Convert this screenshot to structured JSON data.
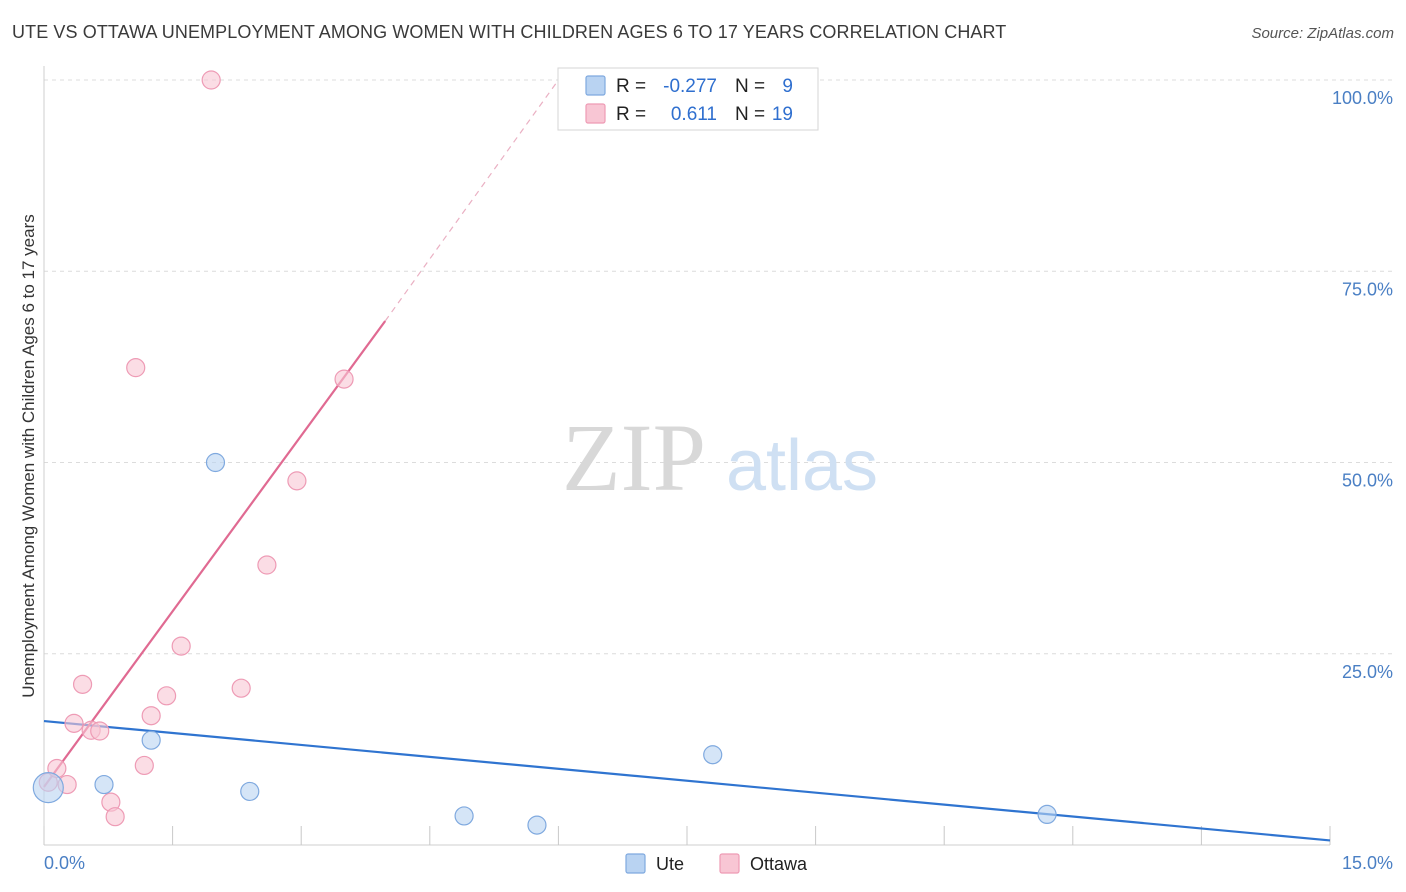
{
  "title": "UTE VS OTTAWA UNEMPLOYMENT AMONG WOMEN WITH CHILDREN AGES 6 TO 17 YEARS CORRELATION CHART",
  "source": "Source: ZipAtlas.com",
  "watermark": {
    "zip": "ZIP",
    "atlas": "atlas"
  },
  "colors": {
    "ute_fill": "#b9d3f2",
    "ute_stroke": "#7fa9df",
    "ute_line": "#2f74d0",
    "ottawa_fill": "#f8c6d4",
    "ottawa_stroke": "#ee9bb5",
    "ottawa_line": "#e06a92",
    "grid": "#dcdcdc",
    "tick_label": "#4a7fc4"
  },
  "legend": {
    "r_label": "R =",
    "n_label": "N =",
    "rows": [
      {
        "series": "Ute",
        "r": "-0.277",
        "n": "9"
      },
      {
        "series": "Ottawa",
        "r": "0.611",
        "n": "19"
      }
    ]
  },
  "bottom_legend": [
    "Ute",
    "Ottawa"
  ],
  "chart_data": {
    "type": "scatter",
    "title": "UTE VS OTTAWA UNEMPLOYMENT AMONG WOMEN WITH CHILDREN AGES 6 TO 17 YEARS CORRELATION CHART",
    "xlabel": "",
    "ylabel": "Unemployment Among Women with Children Ages 6 to 17 years",
    "xlim": [
      0,
      15
    ],
    "ylim": [
      0,
      100
    ],
    "x_tick_labels": [
      "0.0%",
      "15.0%"
    ],
    "y_ticks": [
      25,
      50,
      75,
      100
    ],
    "y_tick_labels": [
      "25.0%",
      "50.0%",
      "75.0%",
      "100.0%"
    ],
    "grid": true,
    "legend_position": "top-center",
    "series": [
      {
        "name": "Ute",
        "points": [
          {
            "x": 0.05,
            "y": 7.5
          },
          {
            "x": 0.7,
            "y": 7.9
          },
          {
            "x": 1.25,
            "y": 13.7
          },
          {
            "x": 2.0,
            "y": 50.0
          },
          {
            "x": 2.4,
            "y": 7.0
          },
          {
            "x": 4.9,
            "y": 3.8
          },
          {
            "x": 5.75,
            "y": 2.6
          },
          {
            "x": 7.8,
            "y": 11.8
          },
          {
            "x": 11.7,
            "y": 4.0
          }
        ],
        "trend": {
          "x": [
            0,
            15
          ],
          "y": [
            16.2,
            0.6
          ]
        }
      },
      {
        "name": "Ottawa",
        "points": [
          {
            "x": 0.05,
            "y": 8.2
          },
          {
            "x": 0.15,
            "y": 10.0
          },
          {
            "x": 0.27,
            "y": 7.9
          },
          {
            "x": 0.35,
            "y": 15.9
          },
          {
            "x": 0.45,
            "y": 21.0
          },
          {
            "x": 0.55,
            "y": 15.0
          },
          {
            "x": 0.65,
            "y": 14.9
          },
          {
            "x": 0.78,
            "y": 5.6
          },
          {
            "x": 0.83,
            "y": 3.7
          },
          {
            "x": 1.07,
            "y": 62.4
          },
          {
            "x": 1.17,
            "y": 10.4
          },
          {
            "x": 1.25,
            "y": 16.9
          },
          {
            "x": 1.43,
            "y": 19.5
          },
          {
            "x": 1.6,
            "y": 26.0
          },
          {
            "x": 1.95,
            "y": 100.0
          },
          {
            "x": 2.3,
            "y": 20.5
          },
          {
            "x": 2.6,
            "y": 36.6
          },
          {
            "x": 2.95,
            "y": 47.6
          },
          {
            "x": 3.5,
            "y": 60.9
          }
        ],
        "trend": {
          "x": [
            0,
            3.98
          ],
          "y": [
            7.6,
            68.5
          ]
        },
        "trend_dashed": {
          "x": [
            3.98,
            6.0
          ],
          "y": [
            68.5,
            100.0
          ]
        }
      }
    ]
  }
}
